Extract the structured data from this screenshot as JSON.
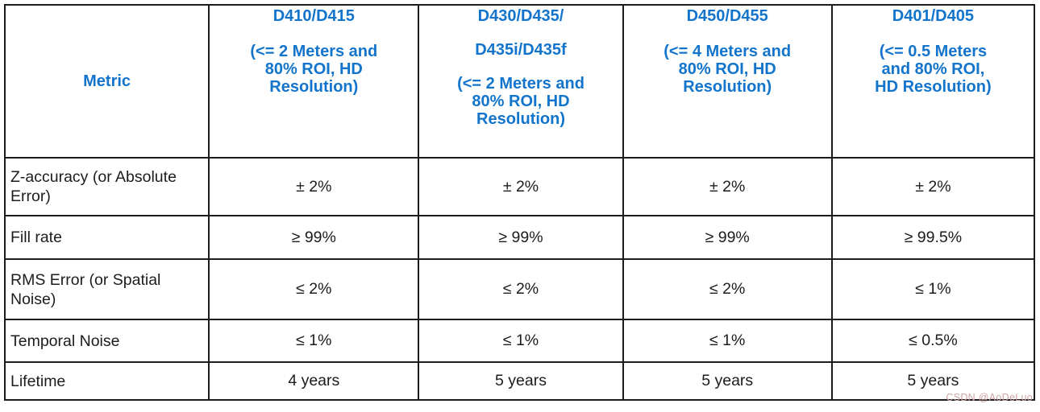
{
  "table": {
    "columns": [
      {
        "title": "Metric"
      },
      {
        "title": "D410/D415",
        "subtitle_lines": [
          "(<= 2 Meters and",
          "80% ROI, HD",
          "Resolution)"
        ]
      },
      {
        "title_lines": [
          "D430/D435/",
          "D435i/D435f"
        ],
        "subtitle_lines": [
          "(<= 2 Meters and",
          "80% ROI, HD",
          "Resolution)"
        ]
      },
      {
        "title": "D450/D455",
        "subtitle_lines": [
          "(<= 4 Meters and",
          "80% ROI, HD",
          "Resolution)"
        ]
      },
      {
        "title": "D401/D405",
        "subtitle_lines": [
          "(<= 0.5 Meters",
          "and 80% ROI,",
          "HD Resolution)"
        ]
      }
    ],
    "rows": [
      {
        "metric": "Z-accuracy (or Absolute Error)",
        "values": [
          "± 2%",
          "± 2%",
          "± 2%",
          "± 2%"
        ]
      },
      {
        "metric": "Fill rate",
        "values": [
          "≥ 99%",
          "≥ 99%",
          "≥ 99%",
          "≥ 99.5%"
        ]
      },
      {
        "metric": "RMS Error (or Spatial Noise)",
        "values": [
          "≤ 2%",
          "≤ 2%",
          "≤ 2%",
          "≤ 1%"
        ]
      },
      {
        "metric": "Temporal Noise",
        "values": [
          "≤ 1%",
          "≤ 1%",
          "≤ 1%",
          "≤ 0.5%"
        ]
      },
      {
        "metric": "Lifetime",
        "values": [
          "4 years",
          "5 years",
          "5 years",
          "5 years"
        ]
      }
    ]
  },
  "watermark": "CSDN @AoDeLuo",
  "colors": {
    "header_text": "#1374cc",
    "body_text": "#1c1c1c",
    "border": "#1c1c1c",
    "watermark_text": "#cfa3a3",
    "background": "#ffffff"
  }
}
